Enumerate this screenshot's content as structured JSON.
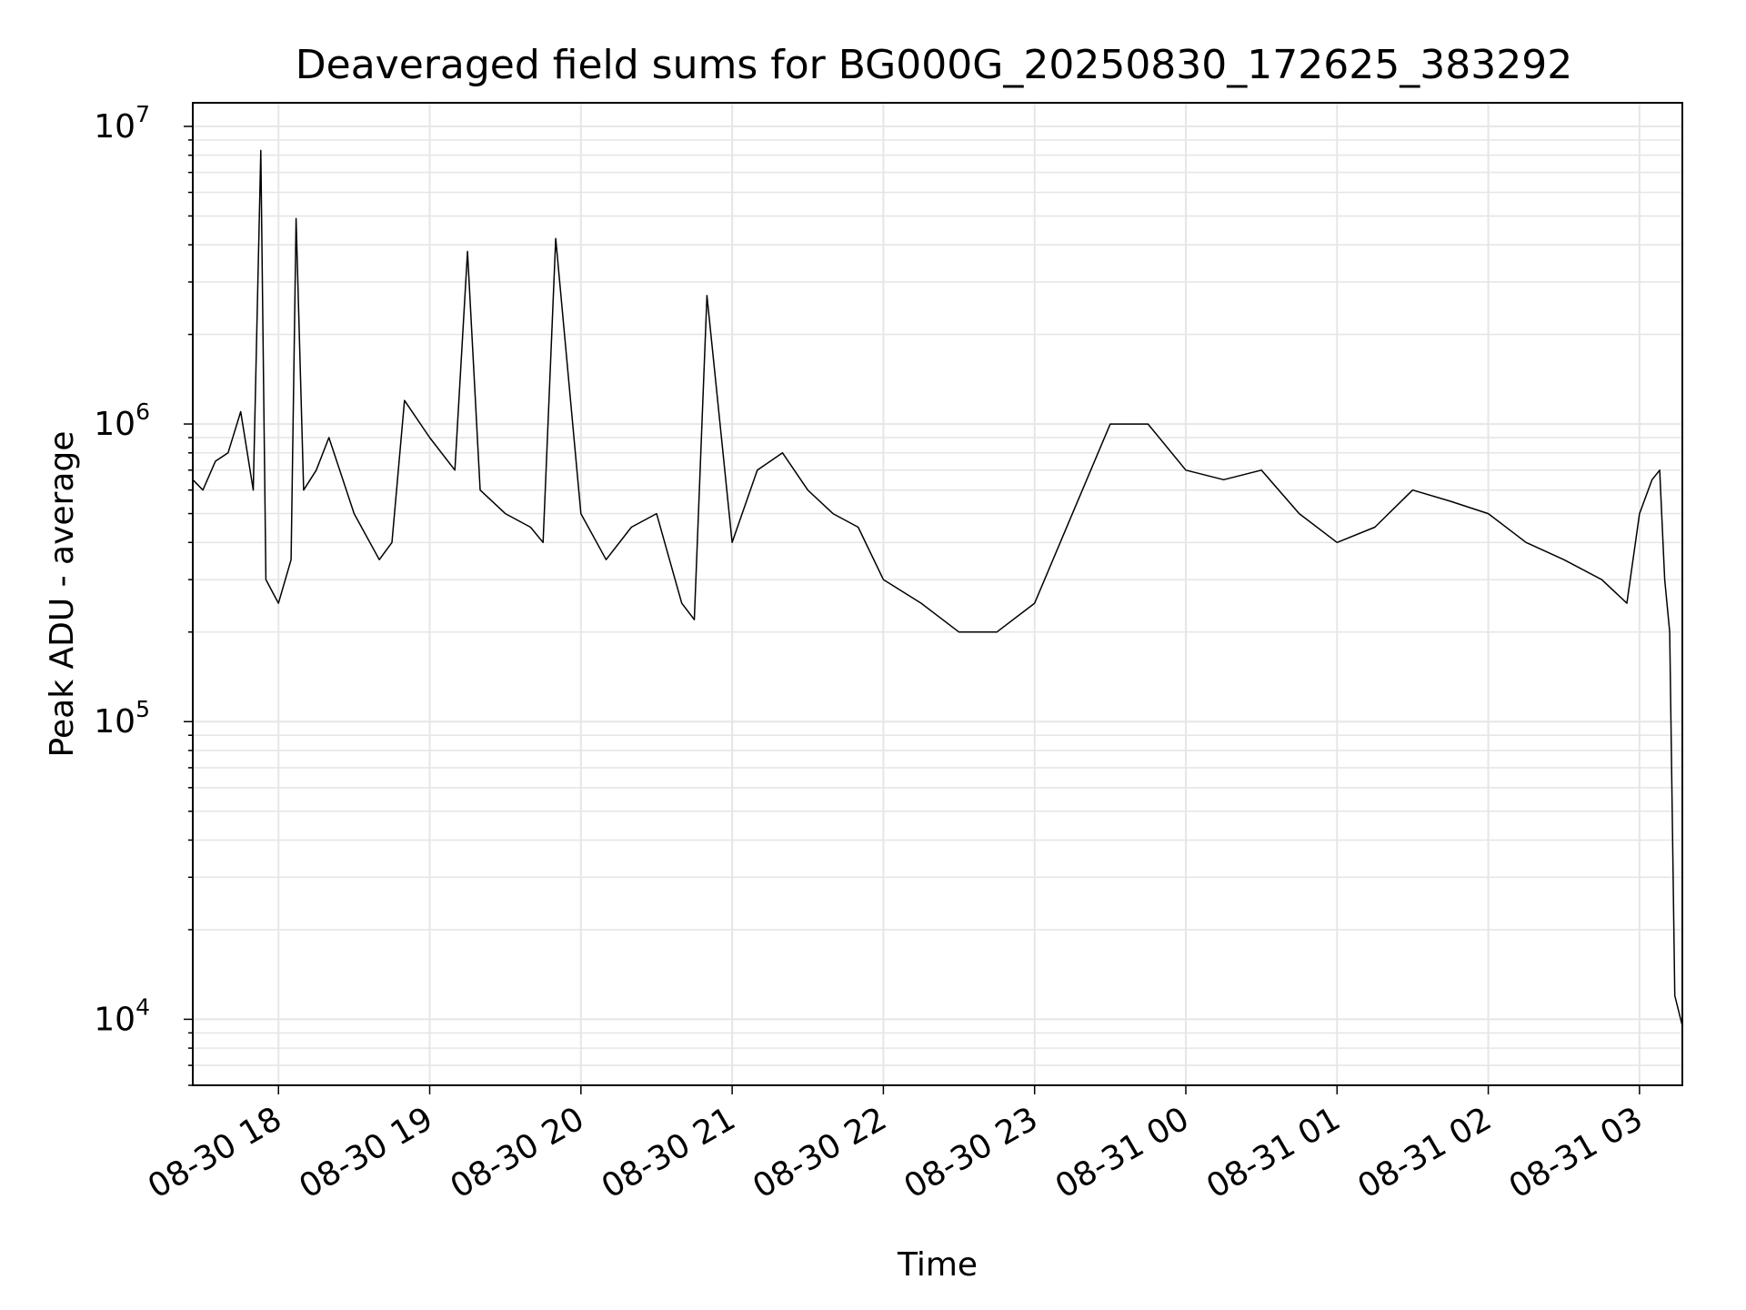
{
  "chart_data": {
    "type": "line",
    "title": "Deaveraged field sums for BG000G_20250830_172625_383292",
    "xlabel": "Time",
    "ylabel": "Peak ADU - average",
    "yscale": "log",
    "ylim": [
      6000,
      12000000
    ],
    "xlim": [
      "2025-08-30 17:26",
      "2025-08-31 03:17"
    ],
    "grid": true,
    "line_color": "#000000",
    "grid_color": "#e6e6e6",
    "x_tick_labels": [
      "08-30 18",
      "08-30 19",
      "08-30 20",
      "08-30 21",
      "08-30 22",
      "08-30 23",
      "08-31 00",
      "08-31 01",
      "08-31 02",
      "08-31 03"
    ],
    "x_tick_times": [
      "2025-08-30 18:00",
      "2025-08-30 19:00",
      "2025-08-30 20:00",
      "2025-08-30 21:00",
      "2025-08-30 22:00",
      "2025-08-30 23:00",
      "2025-08-31 00:00",
      "2025-08-31 01:00",
      "2025-08-31 02:00",
      "2025-08-31 03:00"
    ],
    "y_ticks": [
      {
        "value": 10000,
        "base": "10",
        "exp": "4"
      },
      {
        "value": 100000,
        "base": "10",
        "exp": "5"
      },
      {
        "value": 1000000,
        "base": "10",
        "exp": "6"
      },
      {
        "value": 10000000,
        "base": "10",
        "exp": "7"
      }
    ],
    "series": [
      {
        "x": [
          "2025-08-30 17:26",
          "2025-08-30 17:30",
          "2025-08-30 17:35",
          "2025-08-30 17:40",
          "2025-08-30 17:45",
          "2025-08-30 17:50",
          "2025-08-30 17:53",
          "2025-08-30 17:55",
          "2025-08-30 18:00",
          "2025-08-30 18:05",
          "2025-08-30 18:07",
          "2025-08-30 18:10",
          "2025-08-30 18:15",
          "2025-08-30 18:20",
          "2025-08-30 18:30",
          "2025-08-30 18:40",
          "2025-08-30 18:45",
          "2025-08-30 18:50",
          "2025-08-30 19:00",
          "2025-08-30 19:10",
          "2025-08-30 19:15",
          "2025-08-30 19:20",
          "2025-08-30 19:30",
          "2025-08-30 19:40",
          "2025-08-30 19:45",
          "2025-08-30 19:50",
          "2025-08-30 20:00",
          "2025-08-30 20:10",
          "2025-08-30 20:20",
          "2025-08-30 20:30",
          "2025-08-30 20:40",
          "2025-08-30 20:45",
          "2025-08-30 20:50",
          "2025-08-30 21:00",
          "2025-08-30 21:10",
          "2025-08-30 21:20",
          "2025-08-30 21:30",
          "2025-08-30 21:40",
          "2025-08-30 21:50",
          "2025-08-30 22:00",
          "2025-08-30 22:15",
          "2025-08-30 22:30",
          "2025-08-30 22:45",
          "2025-08-30 23:00",
          "2025-08-30 23:15",
          "2025-08-30 23:30",
          "2025-08-30 23:45",
          "2025-08-31 00:00",
          "2025-08-31 00:15",
          "2025-08-31 00:30",
          "2025-08-31 00:45",
          "2025-08-31 01:00",
          "2025-08-31 01:15",
          "2025-08-31 01:30",
          "2025-08-31 01:45",
          "2025-08-31 02:00",
          "2025-08-31 02:15",
          "2025-08-31 02:30",
          "2025-08-31 02:45",
          "2025-08-31 02:55",
          "2025-08-31 03:00",
          "2025-08-31 03:05",
          "2025-08-31 03:08",
          "2025-08-31 03:10",
          "2025-08-31 03:12",
          "2025-08-31 03:14",
          "2025-08-31 03:17"
        ],
        "y": [
          650000,
          600000,
          750000,
          800000,
          1100000,
          600000,
          8300000,
          300000,
          250000,
          350000,
          4900000,
          600000,
          700000,
          900000,
          500000,
          350000,
          400000,
          1200000,
          900000,
          700000,
          3800000,
          600000,
          500000,
          450000,
          400000,
          4200000,
          500000,
          350000,
          450000,
          500000,
          250000,
          220000,
          2700000,
          400000,
          700000,
          800000,
          600000,
          500000,
          450000,
          300000,
          250000,
          200000,
          200000,
          250000,
          500000,
          1000000,
          1000000,
          700000,
          650000,
          700000,
          500000,
          400000,
          450000,
          600000,
          550000,
          500000,
          400000,
          350000,
          300000,
          250000,
          500000,
          650000,
          700000,
          300000,
          200000,
          12000,
          9500
        ]
      }
    ]
  }
}
